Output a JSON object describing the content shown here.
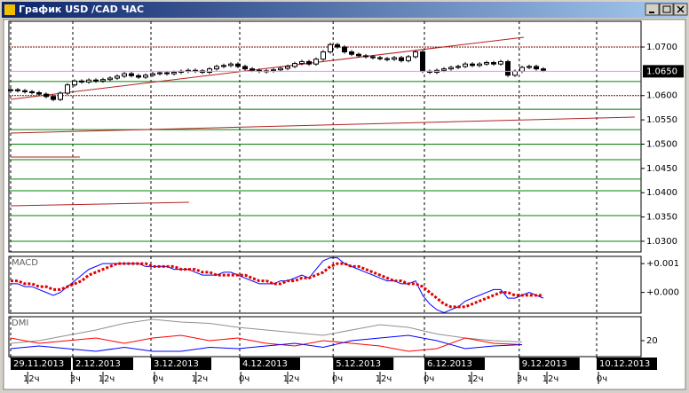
{
  "window": {
    "title": "График USD /CAD ЧАС"
  },
  "chart_data": [
    {
      "type": "candle",
      "xlim": [
        -0.25,
        88.75
      ],
      "ylim": [
        1.0278,
        1.0753
      ],
      "grid": true,
      "color": "#000000",
      "yticks": [
        {
          "value": 1.07,
          "label": "1.0700"
        },
        {
          "value": 1.06,
          "label": "1.0600"
        },
        {
          "value": 1.055,
          "label": "1.0550"
        },
        {
          "value": 1.05,
          "label": "1.0500"
        },
        {
          "value": 1.045,
          "label": "1.0450"
        },
        {
          "value": 1.04,
          "label": "1.0400"
        },
        {
          "value": 1.035,
          "label": "1.0350"
        },
        {
          "value": 1.03,
          "label": "1.0300"
        }
      ],
      "current_price": {
        "value": 1.065,
        "label": "1.0650",
        "color": "#ff80ff"
      },
      "levels": [
        {
          "value": 1.07,
          "color": "#800000"
        },
        {
          "value": 1.0629,
          "color": "#008000"
        },
        {
          "value": 1.06,
          "color": "#800000"
        },
        {
          "value": 1.0572,
          "color": "#008000"
        },
        {
          "value": 1.053,
          "color": "#008000"
        },
        {
          "value": 1.05,
          "color": "#008000"
        },
        {
          "value": 1.0468,
          "color": "#008000"
        },
        {
          "value": 1.0428,
          "color": "#008000"
        },
        {
          "value": 1.0404,
          "color": "#008000"
        },
        {
          "value": 1.0353,
          "color": "#008000"
        },
        {
          "value": 1.03,
          "color": "#008000"
        }
      ],
      "values": [
        1.0612,
        1.061,
        1.0608,
        1.0606,
        1.0603,
        1.0598,
        1.0592,
        1.0605,
        1.0622,
        1.063,
        1.0628,
        1.0632,
        1.063,
        1.0633,
        1.0636,
        1.064,
        1.0645,
        1.0641,
        1.0638,
        1.0642,
        1.0645,
        1.0647,
        1.0645,
        1.0648,
        1.065,
        1.0652,
        1.0651,
        1.0648,
        1.0655,
        1.066,
        1.0662,
        1.0665,
        1.066,
        1.0655,
        1.0652,
        1.065,
        1.0651,
        1.0653,
        1.0656,
        1.066,
        1.0666,
        1.067,
        1.0665,
        1.0675,
        1.069,
        1.0705,
        1.07,
        1.069,
        1.0685,
        1.0682,
        1.068,
        1.0678,
        1.0676,
        1.0675,
        1.0678,
        1.0672,
        1.068,
        1.069,
        1.065,
        1.0648,
        1.0652,
        1.0655,
        1.0658,
        1.066,
        1.0665,
        1.0662,
        1.0665,
        1.0668,
        1.0665,
        1.067,
        1.0642,
        1.065,
        1.0658,
        1.066,
        1.0655,
        1.0652
      ]
    },
    {
      "type": "line",
      "title": "MACD",
      "xlim": [
        -0.25,
        88.75
      ],
      "ylim": [
        -0.00072,
        0.00125
      ],
      "grid": true,
      "yticks": [
        {
          "value": 0.001,
          "label": "+0.001"
        },
        {
          "value": 0,
          "label": "+0.000"
        }
      ],
      "series": [
        {
          "color": "#0000ff",
          "dash": false,
          "values": [
            0.0003,
            0.0003,
            0.0002,
            0.0002,
            0.0001,
            0.0,
            -0.0001,
            0.0,
            0.0002,
            0.0004,
            0.0006,
            0.0008,
            0.0009,
            0.001,
            0.001,
            0.001,
            0.001,
            0.001,
            0.001,
            0.0009,
            0.0009,
            0.0009,
            0.0009,
            0.0008,
            0.0008,
            0.0008,
            0.0007,
            0.0006,
            0.0006,
            0.0006,
            0.0007,
            0.0007,
            0.0006,
            0.0005,
            0.0004,
            0.0003,
            0.0003,
            0.0003,
            0.0004,
            0.0004,
            0.0005,
            0.0006,
            0.0005,
            0.0008,
            0.0011,
            0.0012,
            0.0012,
            0.001,
            0.0009,
            0.0008,
            0.0007,
            0.0006,
            0.0005,
            0.0004,
            0.0004,
            0.0003,
            0.0003,
            0.0004,
            -0.0001,
            -0.0004,
            -0.0006,
            -0.0007,
            -0.0006,
            -0.0005,
            -0.0003,
            -0.0002,
            -0.0001,
            0.0,
            0.0001,
            0.0001,
            -0.0002,
            -0.0002,
            -0.0001,
            0.0,
            -0.0001,
            -0.0002
          ]
        },
        {
          "color": "#e00000",
          "dash": true,
          "values": [
            0.0004,
            0.0004,
            0.0003,
            0.0003,
            0.0002,
            0.0002,
            0.0001,
            0.0001,
            0.0002,
            0.0003,
            0.0004,
            0.0006,
            0.0007,
            0.0008,
            0.0009,
            0.001,
            0.001,
            0.001,
            0.001,
            0.001,
            0.0009,
            0.0009,
            0.0009,
            0.0009,
            0.0008,
            0.0008,
            0.0008,
            0.0007,
            0.0007,
            0.0006,
            0.0006,
            0.0006,
            0.0006,
            0.0006,
            0.0005,
            0.0004,
            0.0004,
            0.0003,
            0.0003,
            0.0004,
            0.0004,
            0.0005,
            0.0005,
            0.0006,
            0.0007,
            0.0009,
            0.001,
            0.001,
            0.0009,
            0.0009,
            0.0008,
            0.0007,
            0.0006,
            0.0005,
            0.0004,
            0.0004,
            0.0003,
            0.0003,
            0.0002,
            0.0,
            -0.0002,
            -0.0004,
            -0.0005,
            -0.0005,
            -0.0005,
            -0.0004,
            -0.0003,
            -0.0002,
            -0.0001,
            0.0,
            0.0,
            -0.0001,
            -0.0001,
            -0.0001,
            -0.0001,
            -0.0001
          ]
        }
      ]
    },
    {
      "type": "line",
      "title": "DMI",
      "xlim": [
        -0.25,
        88.75
      ],
      "ylim": [
        8,
        38
      ],
      "grid": true,
      "yticks": [
        20
      ],
      "x": [
        0,
        4,
        8,
        12,
        16,
        20,
        24,
        28,
        32,
        36,
        40,
        44,
        48,
        52,
        56,
        60,
        64,
        68,
        72
      ],
      "series": [
        {
          "color": "#909090",
          "dash": false,
          "values": [
            18,
            20,
            24,
            28,
            33,
            36,
            34,
            33,
            30,
            28,
            26,
            24,
            28,
            32,
            30,
            25,
            22,
            20,
            19
          ]
        },
        {
          "color": "#ff0000",
          "dash": false,
          "values": [
            22,
            18,
            20,
            22,
            18,
            22,
            24,
            20,
            22,
            18,
            16,
            20,
            18,
            16,
            12,
            14,
            22,
            18,
            17
          ]
        },
        {
          "color": "#0000ff",
          "dash": false,
          "values": [
            14,
            16,
            14,
            12,
            15,
            12,
            12,
            15,
            14,
            16,
            18,
            15,
            20,
            22,
            24,
            20,
            14,
            16,
            17
          ]
        }
      ],
      "xticks": [
        {
          "value": 0,
          "label": "29.11.2013"
        },
        {
          "value": 8.75,
          "label": "2.12.2013"
        },
        {
          "value": 19.75,
          "label": "3.12.2013"
        },
        {
          "value": 32.25,
          "label": "4.12.2013"
        },
        {
          "value": 45.4,
          "label": "5.12.2013"
        },
        {
          "value": 58.25,
          "label": "6.12.2013"
        },
        {
          "value": 71.6,
          "label": "9.12.2013"
        },
        {
          "value": 82.5,
          "label": "10.12.2013"
        }
      ],
      "xticks_minor": [
        {
          "value": 2.9,
          "label": "12ч"
        },
        {
          "value": 9.1,
          "label": "3ч"
        },
        {
          "value": 13.5,
          "label": "12ч"
        },
        {
          "value": 20.75,
          "label": "0ч"
        },
        {
          "value": 26.6,
          "label": "12ч"
        },
        {
          "value": 32.9,
          "label": "0ч"
        },
        {
          "value": 39.5,
          "label": "12ч"
        },
        {
          "value": 46,
          "label": "0ч"
        },
        {
          "value": 52.5,
          "label": "12ч"
        },
        {
          "value": 58.9,
          "label": "0ч"
        },
        {
          "value": 65.4,
          "label": "12ч"
        },
        {
          "value": 72,
          "label": "3ч"
        },
        {
          "value": 76,
          "label": "12ч"
        },
        {
          "value": 83.25,
          "label": "0ч"
        }
      ]
    }
  ]
}
